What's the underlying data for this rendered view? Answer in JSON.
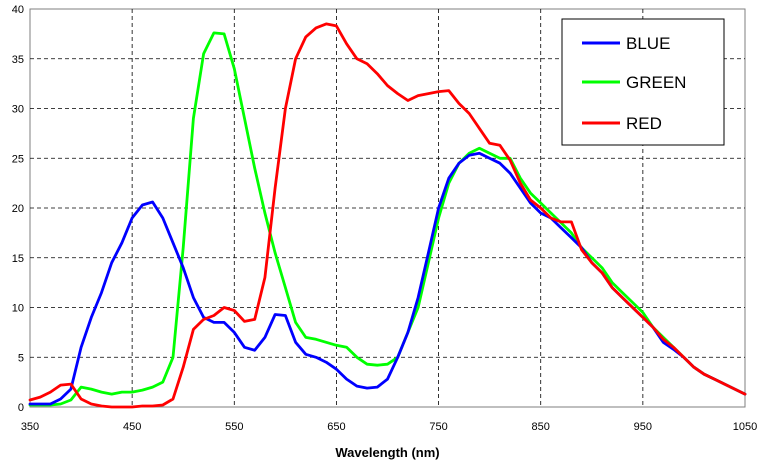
{
  "chart_data": {
    "type": "line",
    "title": "",
    "xlabel": "Wavelength (nm)",
    "ylabel": "",
    "xlim": [
      350,
      1050
    ],
    "ylim": [
      0,
      40
    ],
    "x_ticks": [
      350,
      450,
      550,
      650,
      750,
      850,
      950,
      1050
    ],
    "y_ticks": [
      0,
      5,
      10,
      15,
      20,
      25,
      30,
      35,
      40
    ],
    "grid": true,
    "legend": "top-right",
    "series": [
      {
        "name": "BLUE",
        "color": "#0000ff",
        "x": [
          350,
          360,
          370,
          380,
          390,
          400,
          410,
          420,
          430,
          440,
          450,
          460,
          470,
          480,
          490,
          500,
          510,
          520,
          530,
          540,
          550,
          560,
          570,
          580,
          590,
          600,
          610,
          620,
          630,
          640,
          650,
          660,
          670,
          680,
          690,
          700,
          710,
          720,
          730,
          740,
          750,
          760,
          770,
          780,
          790,
          800,
          810,
          820,
          830,
          840,
          850,
          860,
          870,
          880,
          890,
          900,
          910,
          920,
          930,
          940,
          950,
          960,
          970,
          980,
          990,
          1000,
          1010,
          1020,
          1030,
          1040,
          1050
        ],
        "values": [
          0.3,
          0.3,
          0.3,
          0.8,
          1.8,
          6.0,
          9.0,
          11.5,
          14.5,
          16.5,
          19.0,
          20.3,
          20.6,
          19.0,
          16.5,
          14.0,
          11.0,
          9.0,
          8.5,
          8.5,
          7.5,
          6.0,
          5.7,
          7.0,
          9.3,
          9.2,
          6.5,
          5.3,
          5.0,
          4.5,
          3.8,
          2.8,
          2.1,
          1.9,
          2.0,
          2.8,
          5.0,
          7.5,
          11.0,
          15.5,
          20.0,
          23.0,
          24.5,
          25.3,
          25.5,
          25.0,
          24.5,
          23.5,
          22.0,
          20.5,
          19.5,
          19.0,
          18.0,
          17.0,
          16.0,
          14.5,
          13.5,
          12.0,
          11.0,
          10.0,
          9.0,
          8.0,
          6.5,
          5.8,
          5.0,
          4.0,
          3.3,
          2.8,
          2.3,
          1.8,
          1.3
        ]
      },
      {
        "name": "GREEN",
        "color": "#00ff00",
        "x": [
          350,
          360,
          370,
          380,
          390,
          400,
          410,
          420,
          430,
          440,
          450,
          460,
          470,
          480,
          490,
          500,
          510,
          520,
          530,
          540,
          550,
          560,
          570,
          580,
          590,
          600,
          610,
          620,
          630,
          640,
          650,
          660,
          670,
          680,
          690,
          700,
          710,
          720,
          730,
          740,
          750,
          760,
          770,
          780,
          790,
          800,
          810,
          820,
          830,
          840,
          850,
          860,
          870,
          880,
          890,
          900,
          910,
          920,
          930,
          940,
          950,
          960,
          970,
          980,
          990,
          1000,
          1010,
          1020,
          1030,
          1040,
          1050
        ],
        "values": [
          0.2,
          0.2,
          0.2,
          0.3,
          0.7,
          2.0,
          1.8,
          1.5,
          1.3,
          1.5,
          1.5,
          1.7,
          2.0,
          2.5,
          5.0,
          16.0,
          29.0,
          35.5,
          37.6,
          37.5,
          34.0,
          29.0,
          24.0,
          19.5,
          15.5,
          12.0,
          8.5,
          7.0,
          6.8,
          6.5,
          6.2,
          6.0,
          5.0,
          4.3,
          4.2,
          4.3,
          5.0,
          7.5,
          10.0,
          14.5,
          19.0,
          22.5,
          24.5,
          25.5,
          26.0,
          25.5,
          25.0,
          25.0,
          23.0,
          21.5,
          20.5,
          19.5,
          18.5,
          17.5,
          16.0,
          15.0,
          14.0,
          12.5,
          11.5,
          10.5,
          9.5,
          8.0,
          7.0,
          6.0,
          5.0,
          4.0,
          3.3,
          2.8,
          2.3,
          1.8,
          1.3
        ]
      },
      {
        "name": "RED",
        "color": "#ff0000",
        "x": [
          350,
          360,
          370,
          380,
          390,
          400,
          410,
          420,
          430,
          440,
          450,
          460,
          470,
          480,
          490,
          500,
          510,
          520,
          530,
          540,
          550,
          560,
          570,
          580,
          590,
          600,
          610,
          620,
          630,
          640,
          650,
          660,
          670,
          680,
          690,
          700,
          710,
          720,
          730,
          740,
          750,
          760,
          770,
          780,
          790,
          800,
          810,
          820,
          830,
          840,
          850,
          860,
          870,
          880,
          890,
          900,
          910,
          920,
          930,
          940,
          950,
          960,
          970,
          980,
          990,
          1000,
          1010,
          1020,
          1030,
          1040,
          1050
        ],
        "values": [
          0.7,
          1.0,
          1.5,
          2.2,
          2.3,
          0.8,
          0.3,
          0.1,
          0.0,
          0.0,
          0.0,
          0.1,
          0.1,
          0.2,
          0.8,
          4.0,
          7.8,
          8.8,
          9.2,
          10.0,
          9.7,
          8.6,
          8.8,
          13.0,
          22.0,
          30.0,
          35.0,
          37.2,
          38.1,
          38.5,
          38.3,
          36.5,
          35.0,
          34.5,
          33.5,
          32.3,
          31.5,
          30.8,
          31.3,
          31.5,
          31.7,
          31.8,
          30.5,
          29.5,
          28.0,
          26.5,
          26.3,
          24.8,
          22.5,
          20.8,
          20.0,
          19.0,
          18.6,
          18.6,
          15.8,
          14.5,
          13.5,
          12.0,
          11.0,
          10.0,
          9.0,
          8.0,
          6.8,
          6.0,
          5.0,
          4.0,
          3.3,
          2.8,
          2.3,
          1.8,
          1.3
        ]
      }
    ]
  }
}
